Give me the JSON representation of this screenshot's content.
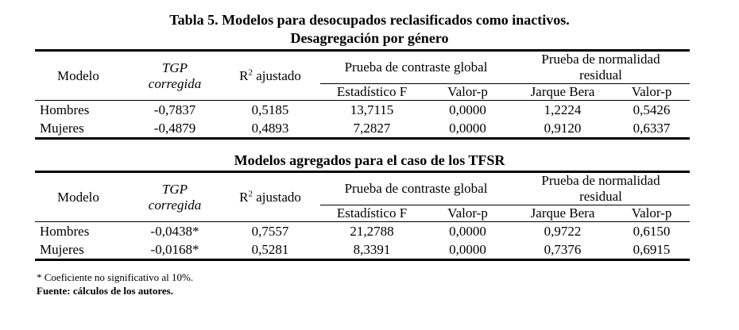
{
  "title_line1": "Tabla 5. Modelos para desocupados reclasificados como inactivos.",
  "title_line2": "Desagregación por género",
  "section2_title": "Modelos agregados para el caso de los TFSR",
  "headers": {
    "modelo": "Modelo",
    "tgp_line1": "TGP",
    "tgp_line2": "corregida",
    "r2_base": "R",
    "r2_sup": "2",
    "r2_rest": " ajustado",
    "contraste": "Prueba de contraste global",
    "normalidad_line1": "Prueba de normalidad",
    "normalidad_line2": "residual",
    "estadistico": "Estadístico F",
    "valor_p": "Valor-p",
    "jarque": "Jarque Bera",
    "valor_p2": "Valor-p"
  },
  "table1": {
    "rows": [
      {
        "modelo": "Hombres",
        "tgp": "-0,7837",
        "r2": "0,5185",
        "f": "13,7115",
        "p": "0,0000",
        "jb": "1,2224",
        "p2": "0,5426"
      },
      {
        "modelo": "Mujeres",
        "tgp": "-0,4879",
        "r2": "0,4893",
        "f": "7,2827",
        "p": "0,0000",
        "jb": "0,9120",
        "p2": "0,6337"
      }
    ]
  },
  "table2": {
    "rows": [
      {
        "modelo": "Hombres",
        "tgp": "-0,0438*",
        "r2": "0,7557",
        "f": "21,2788",
        "p": "0,0000",
        "jb": "0,9722",
        "p2": "0,6150"
      },
      {
        "modelo": "Mujeres",
        "tgp": "-0,0168*",
        "r2": "0,5281",
        "f": "8,3391",
        "p": "0,0000",
        "jb": "0,7376",
        "p2": "0,6915"
      }
    ]
  },
  "notes": {
    "footnote": "* Coeficiente no significativo al 10%.",
    "source": "Fuente: cálculos de los autores."
  }
}
